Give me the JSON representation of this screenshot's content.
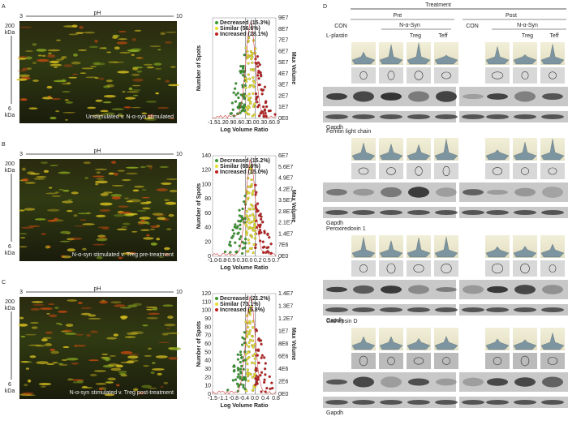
{
  "panels": [
    {
      "label": "A",
      "ph_left": "3",
      "ph_label": "pH",
      "ph_right": "10",
      "mw_top": [
        "200",
        "kDa"
      ],
      "mw_bottom": [
        "6",
        "kDa"
      ],
      "caption": "Unstimulated v. N-α-syn stimulated",
      "legend": [
        "Decreased (15.3%)",
        "Similar (56.6%)",
        "Increased (28.1%)"
      ],
      "y_title": "Number of Spots",
      "x_title": "Log Volume Ratio",
      "y2_title": "Max Volume",
      "xticks": [
        "-1.5",
        "-1.2",
        "-0.9",
        "-0.6",
        "-0.3",
        "0.0",
        "0.3",
        "0.6",
        "0.9"
      ],
      "yticks": [],
      "y2ticks": [
        "9E7",
        "8E7",
        "7E7",
        "6E7",
        "5E7",
        "4E7",
        "3E7",
        "2E7",
        "1E7",
        "0E0"
      ]
    },
    {
      "label": "B",
      "ph_left": "3",
      "ph_label": "pH",
      "ph_right": "10",
      "mw_top": [
        "200",
        "kDa"
      ],
      "mw_bottom": [
        "6",
        "kDa"
      ],
      "caption": "N-α-syn stimulated v. Treg pre-treatment",
      "legend": [
        "Decreased (15.2%)",
        "Similar (69.8%)",
        "Increased (15.0%)"
      ],
      "y_title": "Number of Spots",
      "x_title": "Log Volume Ratio",
      "y2_title": "Max Volume",
      "xticks": [
        "-1.0",
        "-0.8",
        "-0.5",
        "-0.3",
        "0.0",
        "0.2",
        "0.5",
        "0.7"
      ],
      "yticks": [
        "140",
        "120",
        "100",
        "80",
        "60",
        "40",
        "20",
        "0"
      ],
      "y2ticks": [
        "6E7",
        "5.6E7",
        "4.9E7",
        "4.2E7",
        "3.5E7",
        "2.8E7",
        "2.1E7",
        "1.4E7",
        "7E6",
        "0E0"
      ]
    },
    {
      "label": "C",
      "ph_left": "3",
      "ph_label": "pH",
      "ph_right": "10",
      "mw_top": [
        "200",
        "kDa"
      ],
      "mw_bottom": [
        "6",
        "kDa"
      ],
      "caption": "N-α-syn stimulated v. Treg post-treatment",
      "legend": [
        "Decreased (21.2%)",
        "Similar (73.1%)",
        "Increased (5.8%)"
      ],
      "y_title": "Number of Spots",
      "x_title": "Log Volume Ratio",
      "y2_title": "Max Volume",
      "xticks": [
        "-1.5",
        "-1.1",
        "-0.8",
        "-0.4",
        "0.0",
        "0.4",
        "0.8"
      ],
      "yticks": [
        "120",
        "110",
        "100",
        "90",
        "80",
        "70",
        "60",
        "50",
        "40",
        "30",
        "20",
        "10",
        "0"
      ],
      "y2ticks": [
        "1.4E7",
        "1.3E7",
        "1.2E7",
        "1E7",
        "8E6",
        "6E6",
        "4E6",
        "2E6",
        "0E0"
      ]
    }
  ],
  "panel_d": {
    "label": "D",
    "treatment": "Treatment",
    "pre": "Pre",
    "post": "Post",
    "columns_pre": {
      "con": "CON",
      "group": "N-α-Syn",
      "treg": "Treg",
      "teff": "Teff"
    },
    "columns_post": {
      "con": "CON",
      "group": "N-α-Syn",
      "treg": "Treg",
      "teff": "Teff"
    },
    "proteins": [
      "L-plastin",
      "Ferritin light chain",
      "Peroxiredoxin 1",
      "Cathepsin D"
    ],
    "loading_control": "Gapdh"
  }
}
